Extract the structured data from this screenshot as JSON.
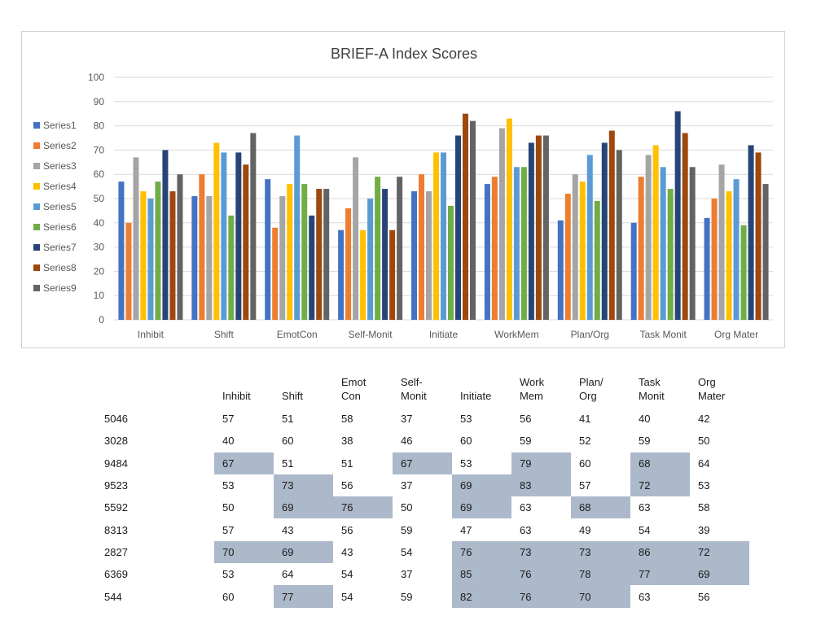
{
  "chart_data": {
    "type": "bar",
    "title": "BRIEF-A Index Scores",
    "categories": [
      "Inhibit",
      "Shift",
      "EmotCon",
      "Self-Monit",
      "Initiate",
      "WorkMem",
      "Plan/Org",
      "Task Monit",
      "Org Mater"
    ],
    "ylim": [
      0,
      100
    ],
    "yticks": [
      0,
      10,
      20,
      30,
      40,
      50,
      60,
      70,
      80,
      90,
      100
    ],
    "grid": true,
    "legend": "left",
    "series": [
      {
        "name": "Series1",
        "color": "#4472c4",
        "values": [
          57,
          51,
          58,
          37,
          53,
          56,
          41,
          40,
          42
        ]
      },
      {
        "name": "Series2",
        "color": "#ed7d31",
        "values": [
          40,
          60,
          38,
          46,
          60,
          59,
          52,
          59,
          50
        ]
      },
      {
        "name": "Series3",
        "color": "#a5a5a5",
        "values": [
          67,
          51,
          51,
          67,
          53,
          79,
          60,
          68,
          64
        ]
      },
      {
        "name": "Series4",
        "color": "#ffc000",
        "values": [
          53,
          73,
          56,
          37,
          69,
          83,
          57,
          72,
          53
        ]
      },
      {
        "name": "Series5",
        "color": "#5b9bd5",
        "values": [
          50,
          69,
          76,
          50,
          69,
          63,
          68,
          63,
          58
        ]
      },
      {
        "name": "Series6",
        "color": "#70ad47",
        "values": [
          57,
          43,
          56,
          59,
          47,
          63,
          49,
          54,
          39
        ]
      },
      {
        "name": "Series7",
        "color": "#264478",
        "values": [
          70,
          69,
          43,
          54,
          76,
          73,
          73,
          86,
          72
        ]
      },
      {
        "name": "Series8",
        "color": "#9e480e",
        "values": [
          53,
          64,
          54,
          37,
          85,
          76,
          78,
          77,
          69
        ]
      },
      {
        "name": "Series9",
        "color": "#636363",
        "values": [
          60,
          77,
          54,
          59,
          82,
          76,
          70,
          63,
          56
        ]
      }
    ]
  },
  "table": {
    "headers": [
      [
        "",
        "Inhibit"
      ],
      [
        "",
        "Shift"
      ],
      [
        "Emot",
        "Con"
      ],
      [
        "Self-",
        "Monit"
      ],
      [
        "",
        "Initiate"
      ],
      [
        "Work",
        "Mem"
      ],
      [
        "Plan/",
        "Org"
      ],
      [
        "Task",
        "Monit"
      ],
      [
        "Org",
        "Mater"
      ]
    ],
    "highlight_color": "#acb9ca",
    "rows": [
      {
        "id": "5046",
        "values": [
          57,
          51,
          58,
          37,
          53,
          56,
          41,
          40,
          42
        ],
        "highlight": [
          false,
          false,
          false,
          false,
          false,
          false,
          false,
          false,
          false
        ]
      },
      {
        "id": "3028",
        "values": [
          40,
          60,
          38,
          46,
          60,
          59,
          52,
          59,
          50
        ],
        "highlight": [
          false,
          false,
          false,
          false,
          false,
          false,
          false,
          false,
          false
        ]
      },
      {
        "id": "9484",
        "values": [
          67,
          51,
          51,
          67,
          53,
          79,
          60,
          68,
          64
        ],
        "highlight": [
          true,
          false,
          false,
          true,
          false,
          true,
          false,
          true,
          false
        ]
      },
      {
        "id": "9523",
        "values": [
          53,
          73,
          56,
          37,
          69,
          83,
          57,
          72,
          53
        ],
        "highlight": [
          false,
          true,
          false,
          false,
          true,
          true,
          false,
          true,
          false
        ]
      },
      {
        "id": "5592",
        "values": [
          50,
          69,
          76,
          50,
          69,
          63,
          68,
          63,
          58
        ],
        "highlight": [
          false,
          true,
          true,
          false,
          true,
          false,
          true,
          false,
          false
        ]
      },
      {
        "id": "8313",
        "values": [
          57,
          43,
          56,
          59,
          47,
          63,
          49,
          54,
          39
        ],
        "highlight": [
          false,
          false,
          false,
          false,
          false,
          false,
          false,
          false,
          false
        ]
      },
      {
        "id": "2827",
        "values": [
          70,
          69,
          43,
          54,
          76,
          73,
          73,
          86,
          72
        ],
        "highlight": [
          true,
          true,
          false,
          false,
          true,
          true,
          true,
          true,
          true
        ]
      },
      {
        "id": "6369",
        "values": [
          53,
          64,
          54,
          37,
          85,
          76,
          78,
          77,
          69
        ],
        "highlight": [
          false,
          false,
          false,
          false,
          true,
          true,
          true,
          true,
          true
        ]
      },
      {
        "id": "544",
        "values": [
          60,
          77,
          54,
          59,
          82,
          76,
          70,
          63,
          56
        ],
        "highlight": [
          false,
          true,
          false,
          false,
          true,
          true,
          true,
          false,
          false
        ]
      }
    ]
  }
}
